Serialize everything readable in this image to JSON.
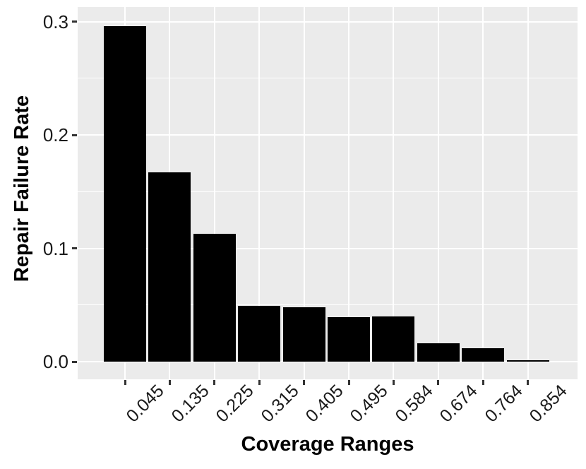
{
  "chart_data": {
    "type": "bar",
    "title": "",
    "xlabel": "Coverage Ranges",
    "ylabel": "Repair Failure Rate",
    "categories": [
      "0.045",
      "0.135",
      "0.225",
      "0.315",
      "0.405",
      "0.495",
      "0.584",
      "0.674",
      "0.764",
      "0.854"
    ],
    "values": [
      0.296,
      0.167,
      0.113,
      0.049,
      0.048,
      0.039,
      0.04,
      0.016,
      0.012,
      0.001
    ],
    "ylim": [
      -0.016,
      0.312
    ],
    "yticks": [
      0.0,
      0.1,
      0.2,
      0.3
    ],
    "ytick_labels": [
      "0.0",
      "0.1",
      "0.2",
      "0.3"
    ],
    "y_minor_ticks": [
      0.05,
      0.15,
      0.25
    ],
    "grid": true,
    "legend": false,
    "bar_orientation": "vertical"
  },
  "style": {
    "panel_background": "#EBEBEB",
    "grid_color": "#FFFFFF",
    "bar_fill": "#000000",
    "tick_mark_color": "#333333",
    "tick_label_color": "#1a1a1a",
    "axis_title_color": "#000000"
  }
}
